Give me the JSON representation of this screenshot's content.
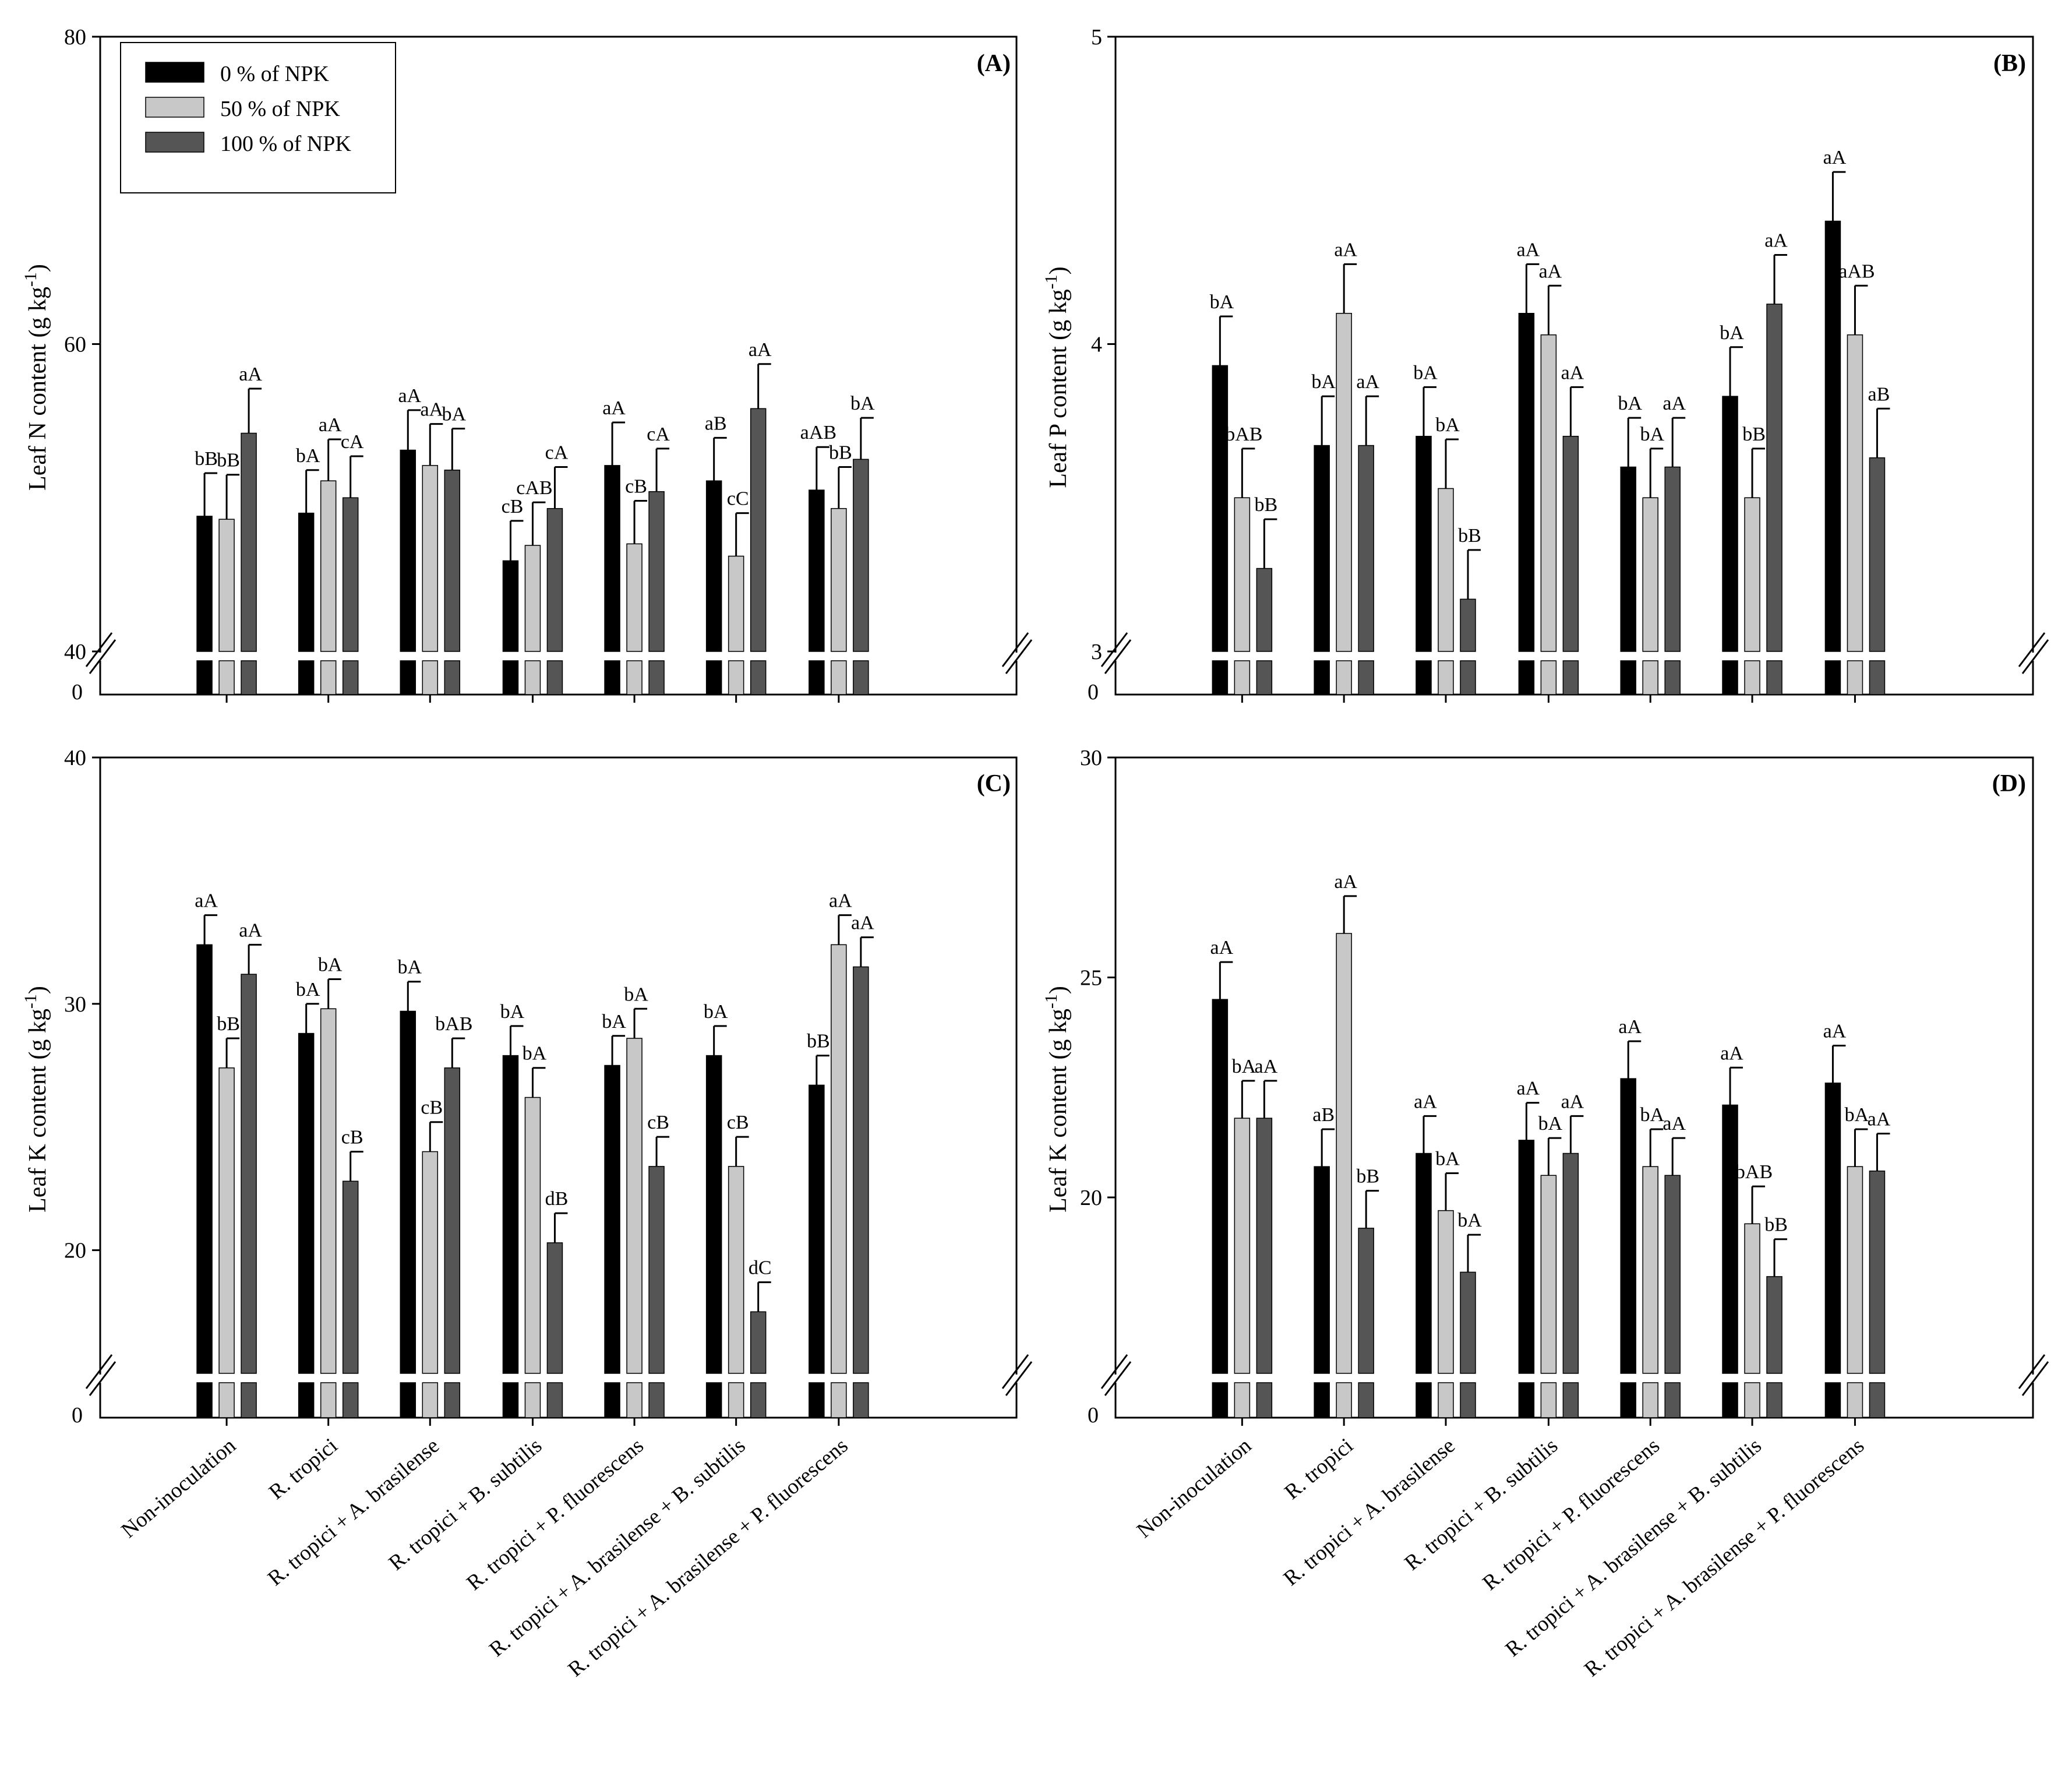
{
  "legend": [
    {
      "label": "0 % of NPK",
      "color": "#000000"
    },
    {
      "label": "50 % of NPK",
      "color": "#c8c8c8"
    },
    {
      "label": "100 % of NPK",
      "color": "#555555"
    }
  ],
  "chart_data": [
    {
      "type": "bar",
      "panel": "(A)",
      "ylabel_main": "Leaf  N content (g kg",
      "ylabel_sup": "-1",
      "ylabel_end": ")",
      "ylim": [
        40,
        80
      ],
      "yticks": [
        "40",
        "60",
        "80"
      ],
      "ybreak_zero": "0",
      "legend_position": "top-left",
      "categories": [
        "Non-inoculation",
        "R. tropici",
        "R. tropici + A. brasilense",
        "R. tropici + B. subtilis",
        "R. tropici + P. fluorescens",
        "R. tropici + A. brasilense + B. subtilis",
        "R. tropici + A. brasilense + P. fluorescens"
      ],
      "series": [
        {
          "name": "0 % of NPK",
          "values": [
            48.8,
            49.0,
            53.1,
            45.9,
            52.1,
            51.1,
            50.5
          ],
          "errors": [
            2.8,
            2.8,
            2.6,
            2.6,
            2.8,
            2.8,
            2.8
          ],
          "labels": [
            "bB",
            "bA",
            "aA",
            "cB",
            "aA",
            "aB",
            "aAB"
          ]
        },
        {
          "name": "50 % of NPK",
          "values": [
            48.6,
            51.1,
            52.1,
            46.9,
            47.0,
            46.2,
            49.3
          ],
          "errors": [
            2.9,
            2.7,
            2.7,
            2.8,
            2.8,
            2.8,
            2.7
          ],
          "labels": [
            "bB",
            "aA",
            "aA",
            "cAB",
            "cB",
            "cC",
            "bB"
          ]
        },
        {
          "name": "100 % of NPK",
          "values": [
            54.2,
            50.0,
            51.8,
            49.3,
            50.4,
            55.8,
            52.5
          ],
          "errors": [
            2.9,
            2.7,
            2.7,
            2.7,
            2.8,
            2.9,
            2.7
          ],
          "labels": [
            "aA",
            "cA",
            "bA",
            "cA",
            "cA",
            "aA",
            "bA"
          ]
        }
      ]
    },
    {
      "type": "bar",
      "panel": "(B)",
      "ylabel_main": "Leaf  P content (g kg",
      "ylabel_sup": "-1",
      "ylabel_end": ")",
      "ylim": [
        3,
        5
      ],
      "yticks": [
        "3",
        "4",
        "5"
      ],
      "ybreak_zero": "0",
      "categories": [
        "Non-inoculation",
        "R. tropici",
        "R. tropici + A. brasilense",
        "R. tropici + B. subtilis",
        "R. tropici + P. fluorescens",
        "R. tropici + A. brasilense + B. subtilis",
        "R. tropici + A. brasilense + P. fluorescens"
      ],
      "series": [
        {
          "name": "0 % of NPK",
          "values": [
            3.93,
            3.67,
            3.7,
            4.1,
            3.6,
            3.83,
            4.4
          ],
          "errors": [
            0.16,
            0.16,
            0.16,
            0.16,
            0.16,
            0.16,
            0.16
          ],
          "labels": [
            "bA",
            "bA",
            "bA",
            "aA",
            "bA",
            "bA",
            "aA"
          ]
        },
        {
          "name": "50 % of NPK",
          "values": [
            3.5,
            4.1,
            3.53,
            4.03,
            3.5,
            3.5,
            4.03
          ],
          "errors": [
            0.16,
            0.16,
            0.16,
            0.16,
            0.16,
            0.16,
            0.16
          ],
          "labels": [
            "bAB",
            "aA",
            "bA",
            "aA",
            "bA",
            "bB",
            "aAB"
          ]
        },
        {
          "name": "100 % of NPK",
          "values": [
            3.27,
            3.67,
            3.17,
            3.7,
            3.6,
            4.13,
            3.63
          ],
          "errors": [
            0.16,
            0.16,
            0.16,
            0.16,
            0.16,
            0.16,
            0.16
          ],
          "labels": [
            "bB",
            "aA",
            "bB",
            "aA",
            "aA",
            "aA",
            "aB"
          ]
        }
      ]
    },
    {
      "type": "bar",
      "panel": "(C)",
      "ylabel_main": "Leaf  K content (g kg",
      "ylabel_sup": "-1",
      "ylabel_end": ")",
      "ylim": [
        15,
        40
      ],
      "yticks": [
        "20",
        "30",
        "40"
      ],
      "ybreak_zero": "0",
      "categories": [
        "Non-inoculation",
        "R. tropici",
        "R. tropici + A. brasilense",
        "R. tropici + B. subtilis",
        "R. tropici + P. fluorescens",
        "R. tropici + A. brasilense + B. subtilis",
        "R. tropici + A. brasilense + P. fluorescens"
      ],
      "series": [
        {
          "name": "0 % of NPK",
          "values": [
            32.4,
            28.8,
            29.7,
            27.9,
            27.5,
            27.9,
            26.7
          ],
          "errors": [
            1.2,
            1.2,
            1.2,
            1.2,
            1.2,
            1.2,
            1.2
          ],
          "labels": [
            "aA",
            "bA",
            "bA",
            "bA",
            "bA",
            "bA",
            "bB"
          ]
        },
        {
          "name": "50 % of NPK",
          "values": [
            27.4,
            29.8,
            24.0,
            26.2,
            28.6,
            23.4,
            32.4
          ],
          "errors": [
            1.2,
            1.2,
            1.2,
            1.2,
            1.2,
            1.2,
            1.2
          ],
          "labels": [
            "bB",
            "bA",
            "cB",
            "bA",
            "bA",
            "cB",
            "aA"
          ]
        },
        {
          "name": "100 % of NPK",
          "values": [
            31.2,
            22.8,
            27.4,
            20.3,
            23.4,
            17.5,
            31.5
          ],
          "errors": [
            1.2,
            1.2,
            1.2,
            1.2,
            1.2,
            1.2,
            1.2
          ],
          "labels": [
            "aA",
            "cB",
            "bAB",
            "dB",
            "cB",
            "dC",
            "aA"
          ]
        }
      ]
    },
    {
      "type": "bar",
      "panel": "(D)",
      "ylabel_main": "Leaf  K content (g kg",
      "ylabel_sup": "-1",
      "ylabel_end": ")",
      "ylim": [
        16,
        30
      ],
      "yticks": [
        "20",
        "25",
        "30"
      ],
      "ybreak_zero": "0",
      "categories": [
        "Non-inoculation",
        "R. tropici",
        "R. tropici + A. brasilense",
        "R. tropici + B. subtilis",
        "R. tropici + P. fluorescens",
        "R. tropici + A. brasilense + B. subtilis",
        "R. tropici + A. brasilense + P. fluorescens"
      ],
      "series": [
        {
          "name": "0 % of NPK",
          "values": [
            24.5,
            20.7,
            21.0,
            21.3,
            22.7,
            22.1,
            22.6
          ],
          "errors": [
            0.85,
            0.85,
            0.85,
            0.85,
            0.85,
            0.85,
            0.85
          ],
          "labels": [
            "aA",
            "aB",
            "aA",
            "aA",
            "aA",
            "aA",
            "aA"
          ]
        },
        {
          "name": "50 % of NPK",
          "values": [
            21.8,
            26.0,
            19.7,
            20.5,
            20.7,
            19.4,
            20.7
          ],
          "errors": [
            0.85,
            0.85,
            0.85,
            0.85,
            0.85,
            0.85,
            0.85
          ],
          "labels": [
            "bA",
            "aA",
            "bA",
            "bA",
            "bA",
            "bAB",
            "bA"
          ]
        },
        {
          "name": "100 % of NPK",
          "values": [
            21.8,
            19.3,
            18.3,
            21.0,
            20.5,
            18.2,
            20.6
          ],
          "errors": [
            0.85,
            0.85,
            0.85,
            0.85,
            0.85,
            0.85,
            0.85
          ],
          "labels": [
            "aA",
            "bB",
            "bA",
            "aA",
            "aA",
            "bB",
            "aA"
          ]
        }
      ]
    }
  ]
}
